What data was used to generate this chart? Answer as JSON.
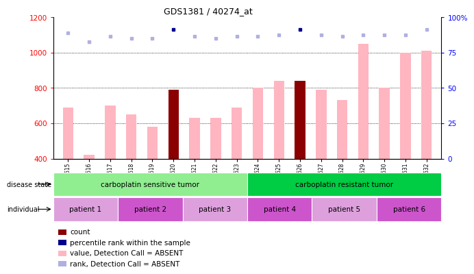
{
  "title": "GDS1381 / 40274_at",
  "samples": [
    "GSM34615",
    "GSM34616",
    "GSM34617",
    "GSM34618",
    "GSM34619",
    "GSM34620",
    "GSM34621",
    "GSM34622",
    "GSM34623",
    "GSM34624",
    "GSM34625",
    "GSM34626",
    "GSM34627",
    "GSM34628",
    "GSM34629",
    "GSM34630",
    "GSM34631",
    "GSM34632"
  ],
  "bar_values": [
    690,
    420,
    700,
    650,
    580,
    790,
    630,
    630,
    690,
    800,
    840,
    840,
    790,
    730,
    1050,
    800,
    1000,
    1010
  ],
  "bar_colors": [
    "#ffb6c1",
    "#ffb6c1",
    "#ffb6c1",
    "#ffb6c1",
    "#ffb6c1",
    "#8b0000",
    "#ffb6c1",
    "#ffb6c1",
    "#ffb6c1",
    "#ffb6c1",
    "#ffb6c1",
    "#8b0000",
    "#ffb6c1",
    "#ffb6c1",
    "#ffb6c1",
    "#ffb6c1",
    "#ffb6c1",
    "#ffb6c1"
  ],
  "rank_values": [
    1110,
    1060,
    1090,
    1080,
    1080,
    1130,
    1090,
    1080,
    1090,
    1090,
    1100,
    1130,
    1100,
    1090,
    1100,
    1100,
    1100,
    1130
  ],
  "rank_colors": [
    "#b0b0e0",
    "#b0b0e0",
    "#b0b0e0",
    "#b0b0e0",
    "#b0b0e0",
    "#00008b",
    "#b0b0e0",
    "#b0b0e0",
    "#b0b0e0",
    "#b0b0e0",
    "#b0b0e0",
    "#00008b",
    "#b0b0e0",
    "#b0b0e0",
    "#b0b0e0",
    "#b0b0e0",
    "#b0b0e0",
    "#b0b0e0"
  ],
  "ylim_left": [
    400,
    1200
  ],
  "ylim_right": [
    0,
    100
  ],
  "yticks_left": [
    400,
    600,
    800,
    1000,
    1200
  ],
  "yticks_right": [
    0,
    25,
    50,
    75,
    100
  ],
  "grid_values": [
    600,
    800,
    1000
  ],
  "disease_state_groups": [
    {
      "label": "carboplatin sensitive tumor",
      "start": 0,
      "end": 8,
      "color": "#90ee90"
    },
    {
      "label": "carboplatin resistant tumor",
      "start": 9,
      "end": 17,
      "color": "#00cc44"
    }
  ],
  "individual_groups": [
    {
      "label": "patient 1",
      "start": 0,
      "end": 2,
      "color": "#dda0dd"
    },
    {
      "label": "patient 2",
      "start": 3,
      "end": 5,
      "color": "#cc55cc"
    },
    {
      "label": "patient 3",
      "start": 6,
      "end": 8,
      "color": "#dda0dd"
    },
    {
      "label": "patient 4",
      "start": 9,
      "end": 11,
      "color": "#cc55cc"
    },
    {
      "label": "patient 5",
      "start": 12,
      "end": 14,
      "color": "#dda0dd"
    },
    {
      "label": "patient 6",
      "start": 15,
      "end": 17,
      "color": "#cc55cc"
    }
  ],
  "legend_items": [
    {
      "label": "count",
      "color": "#8b0000"
    },
    {
      "label": "percentile rank within the sample",
      "color": "#00008b"
    },
    {
      "label": "value, Detection Call = ABSENT",
      "color": "#ffb6c1"
    },
    {
      "label": "rank, Detection Call = ABSENT",
      "color": "#b0b0e0"
    }
  ],
  "bar_width": 0.5,
  "xticklabel_gray_bg": "#cccccc"
}
